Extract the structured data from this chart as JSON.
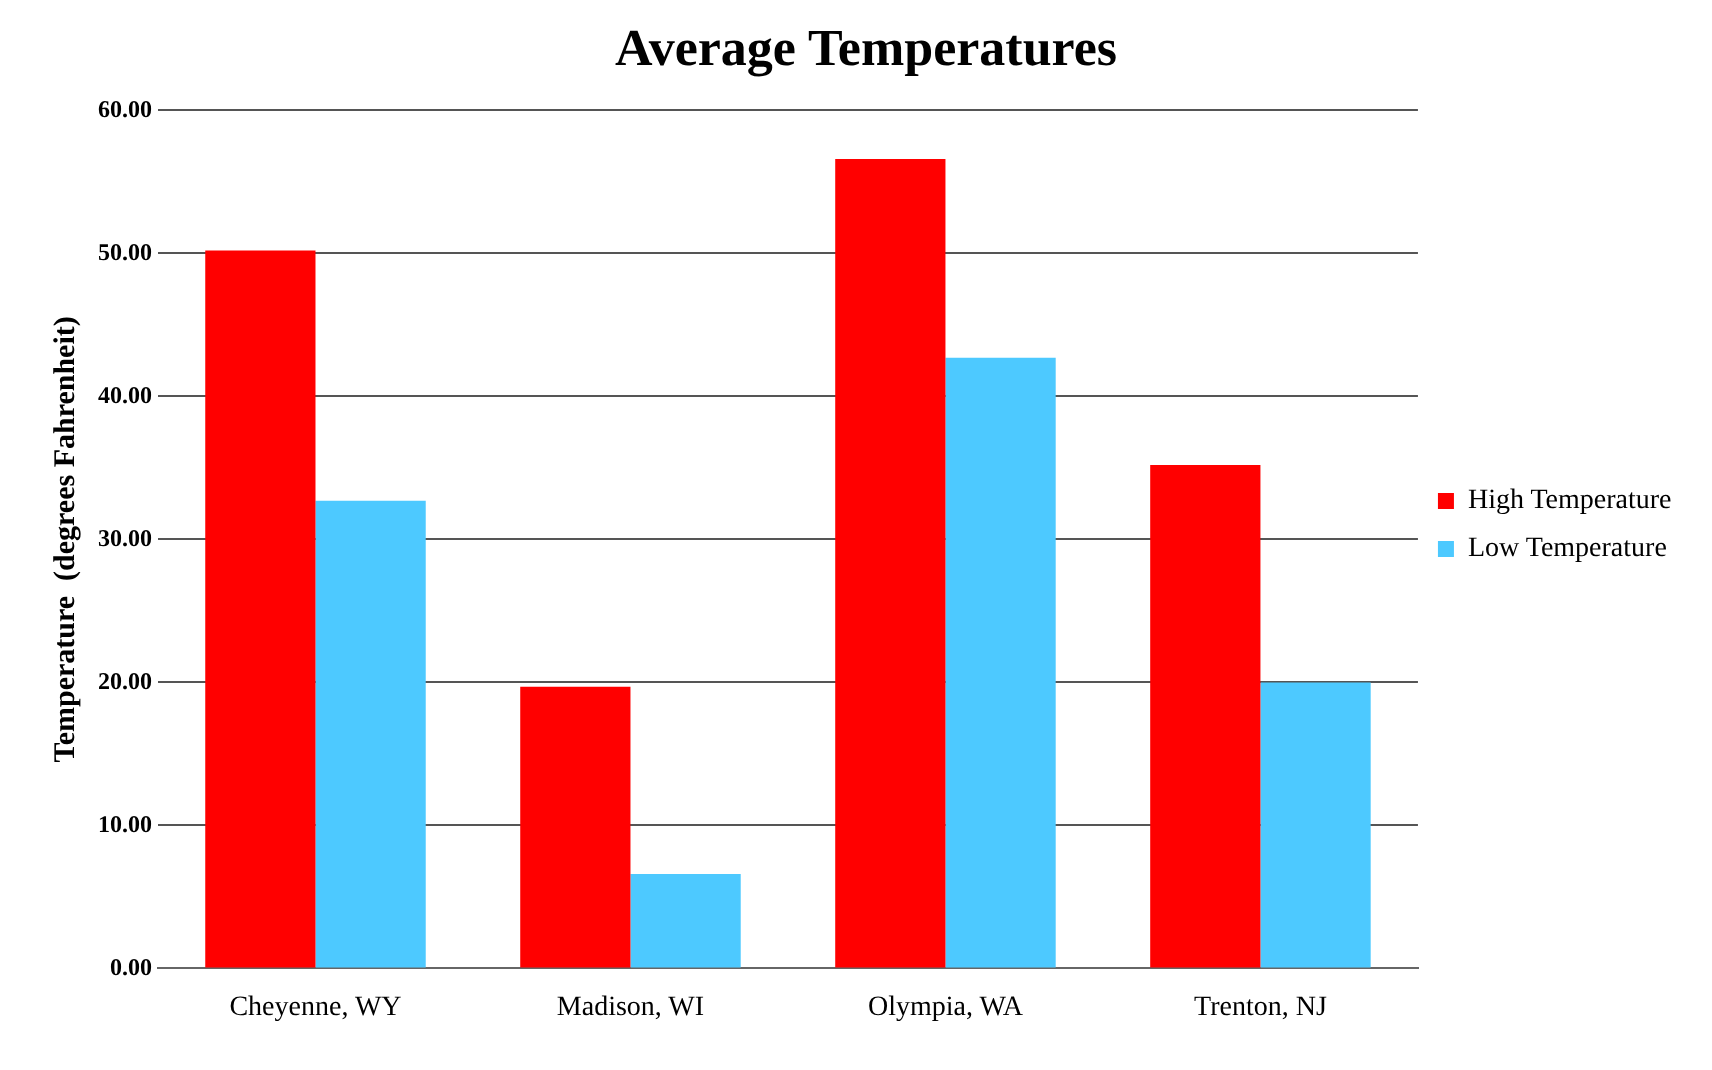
{
  "chart_data": {
    "type": "bar",
    "title": "Average Temperatures",
    "ylabel": "Temperature  (degrees Fahrenheit)",
    "categories": [
      "Cheyenne, WY",
      "Madison, WI",
      "Olympia, WA",
      "Trenton, NJ"
    ],
    "series": [
      {
        "name": "High Temperature",
        "color": "#ff0000",
        "values": [
          50.2,
          19.7,
          56.6,
          35.2
        ]
      },
      {
        "name": "Low Temperature",
        "color": "#4dc9ff",
        "values": [
          32.7,
          6.6,
          42.7,
          20.0
        ]
      }
    ],
    "ylim": [
      0,
      60
    ],
    "yticks": [
      {
        "value": 0,
        "label": "0.00"
      },
      {
        "value": 10,
        "label": "10.00"
      },
      {
        "value": 20,
        "label": "20.00"
      },
      {
        "value": 30,
        "label": "30.00"
      },
      {
        "value": 40,
        "label": "40.00"
      },
      {
        "value": 50,
        "label": "50.00"
      },
      {
        "value": 60,
        "label": "60.00"
      }
    ],
    "grid": "y",
    "legend": "right"
  }
}
